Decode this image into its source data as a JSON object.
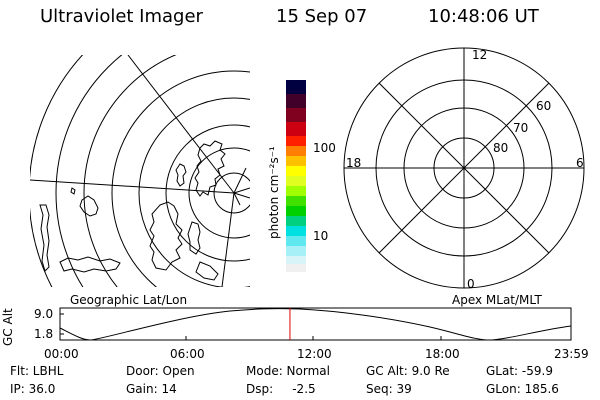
{
  "header": {
    "title": "Ultraviolet Imager",
    "date": "15 Sep 07",
    "time": "10:48:06 UT"
  },
  "colorbar": {
    "label": "photon cm⁻²s⁻¹",
    "ticks": [
      "100",
      "10"
    ]
  },
  "left_map": {
    "caption": "Geographic Lat/Lon"
  },
  "right_map": {
    "caption": "Apex MLat/MLT",
    "mlt_labels": [
      "12",
      "18",
      "6",
      "0"
    ],
    "mlat_labels": [
      "60",
      "70",
      "80"
    ]
  },
  "timeline": {
    "ylabel": "GC Alt",
    "y_ticks": [
      "9.0",
      "1.8"
    ],
    "x_ticks": [
      "00:00",
      "06:00",
      "12:00",
      "18:00",
      "23:59"
    ],
    "current_time_hours": 10.8
  },
  "status": {
    "flt": "Flt: LBHL",
    "ip": "IP: 36.0",
    "door": "Door: Open",
    "gain": "Gain: 14",
    "mode": "Mode: Normal",
    "dsp": "Dsp:     -2.5",
    "gc_alt": "GC Alt: 9.0 Re",
    "seq": "Seq: 39",
    "glat": "GLat: -59.9",
    "glon": "GLon: 185.6"
  },
  "colors": {
    "cursor": "#dd0000",
    "line": "#000000"
  }
}
